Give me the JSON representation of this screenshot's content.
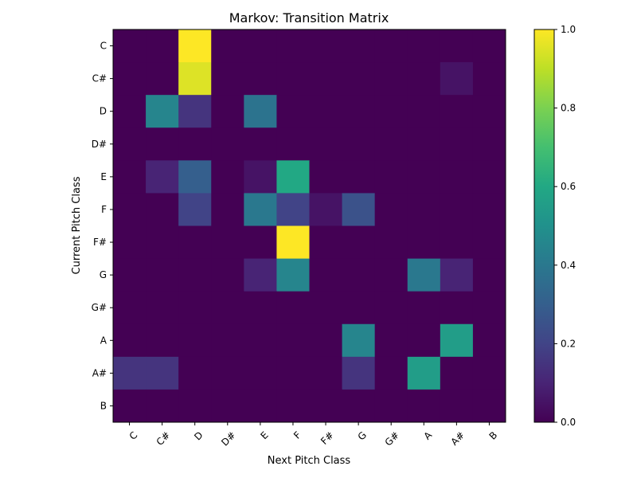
{
  "chart_data": {
    "type": "heatmap",
    "title": "Markov: Transition Matrix",
    "xlabel": "Next Pitch Class",
    "ylabel": "Current Pitch Class",
    "x_categories": [
      "C",
      "C#",
      "D",
      "D#",
      "E",
      "F",
      "F#",
      "G",
      "G#",
      "A",
      "A#",
      "B"
    ],
    "y_categories": [
      "C",
      "C#",
      "D",
      "D#",
      "E",
      "F",
      "F#",
      "G",
      "G#",
      "A",
      "A#",
      "B"
    ],
    "values": [
      [
        0,
        0,
        1.0,
        0,
        0,
        0,
        0,
        0,
        0,
        0,
        0,
        0
      ],
      [
        0,
        0,
        0.95,
        0,
        0,
        0,
        0,
        0,
        0,
        0,
        0.05,
        0
      ],
      [
        0,
        0.45,
        0.15,
        0,
        0.38,
        0,
        0,
        0,
        0,
        0,
        0,
        0
      ],
      [
        0,
        0,
        0,
        0,
        0,
        0,
        0,
        0,
        0,
        0,
        0,
        0
      ],
      [
        0,
        0.1,
        0.3,
        0,
        0.05,
        0.6,
        0,
        0,
        0,
        0,
        0,
        0
      ],
      [
        0,
        0,
        0.2,
        0,
        0.4,
        0.2,
        0.05,
        0.25,
        0,
        0,
        0,
        0
      ],
      [
        0,
        0,
        0,
        0,
        0,
        1.0,
        0,
        0,
        0,
        0,
        0,
        0
      ],
      [
        0,
        0,
        0,
        0,
        0.1,
        0.45,
        0,
        0,
        0,
        0.4,
        0.1,
        0
      ],
      [
        0,
        0,
        0,
        0,
        0,
        0,
        0,
        0,
        0,
        0,
        0,
        0
      ],
      [
        0,
        0,
        0,
        0,
        0,
        0,
        0,
        0.45,
        0,
        0,
        0.55,
        0
      ],
      [
        0.15,
        0.15,
        0,
        0,
        0,
        0,
        0,
        0.15,
        0,
        0.55,
        0,
        0
      ],
      [
        0,
        0,
        0,
        0,
        0,
        0,
        0,
        0,
        0,
        0,
        0,
        0
      ]
    ],
    "colormap": "viridis",
    "vmin": 0,
    "vmax": 1,
    "colorbar_ticks": [
      "0.0",
      "0.2",
      "0.4",
      "0.6",
      "0.8",
      "1.0"
    ],
    "colorbar_tick_values": [
      0,
      0.2,
      0.4,
      0.6,
      0.8,
      1.0
    ]
  }
}
